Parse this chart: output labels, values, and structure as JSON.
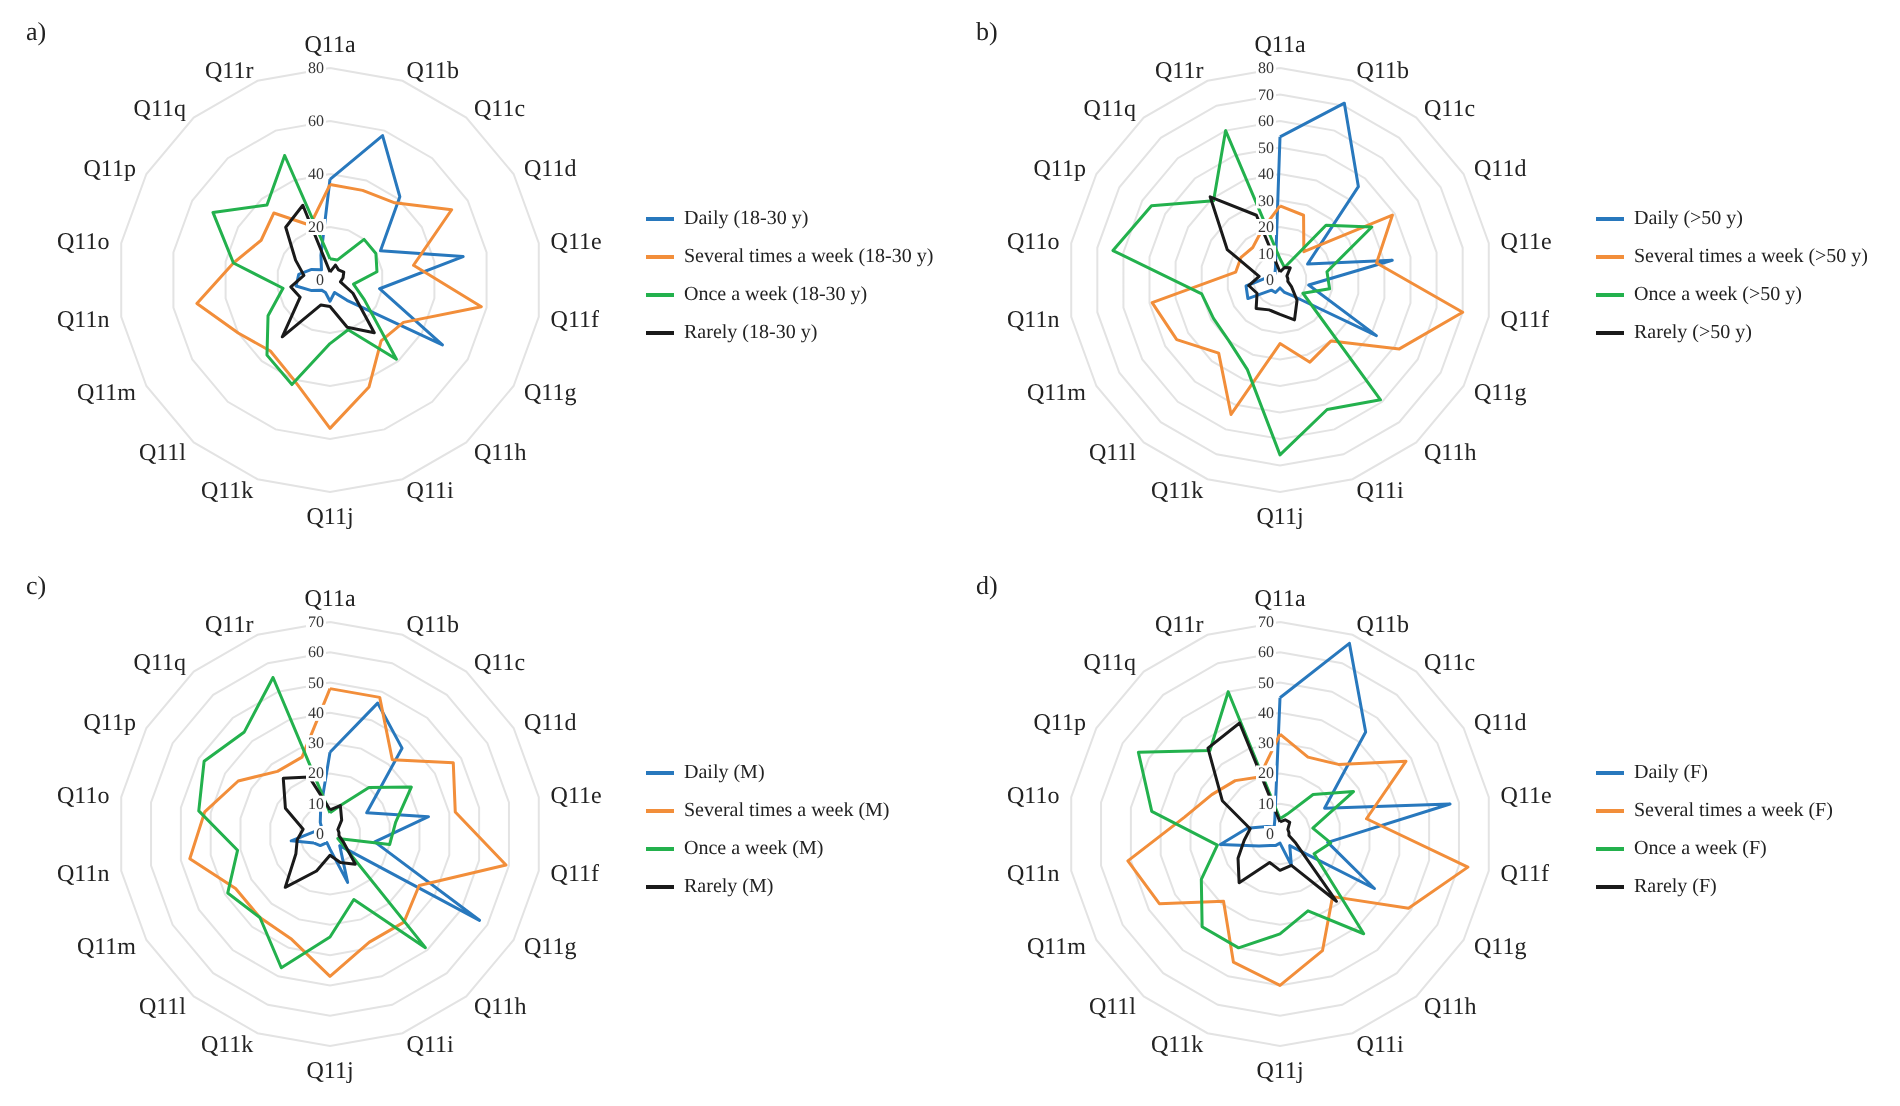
{
  "chart_data": [
    {
      "type": "radar",
      "title": "a)",
      "categories": [
        "Q11a",
        "Q11b",
        "Q11c",
        "Q11d",
        "Q11e",
        "Q11f",
        "Q11g",
        "Q11h",
        "Q11i",
        "Q11j",
        "Q11k",
        "Q11l",
        "Q11m",
        "Q11n",
        "Q11o",
        "Q11p",
        "Q11q",
        "Q11r"
      ],
      "ylim": [
        0,
        80
      ],
      "yticks": [
        0,
        20,
        40,
        60,
        80
      ],
      "grid": true,
      "legend": "right",
      "marker": "none",
      "series": [
        {
          "name": "Daily (18-30 y)",
          "color": "#2878bd",
          "values": [
            38,
            58,
            41,
            22,
            51,
            19,
            49,
            10,
            5,
            8,
            5,
            5,
            8,
            13,
            12,
            8,
            5,
            10
          ]
        },
        {
          "name": "Several times a week (18-30 y)",
          "color": "#f28e3a",
          "values": [
            36,
            36,
            38,
            53,
            32,
            58,
            32,
            30,
            43,
            56,
            40,
            35,
            40,
            51,
            37,
            30,
            33,
            22
          ]
        },
        {
          "name": "Once a week (18-30 y)",
          "color": "#23b14d",
          "values": [
            8,
            8,
            20,
            20,
            18,
            9,
            15,
            39,
            20,
            24,
            42,
            37,
            27,
            18,
            37,
            51,
            37,
            50
          ]
        },
        {
          "name": "Rarely (18-30 y)",
          "color": "#1a1a1a",
          "values": [
            3,
            6,
            5,
            6,
            5,
            4,
            10,
            26,
            19,
            10,
            10,
            28,
            13,
            15,
            10,
            15,
            26,
            30
          ]
        }
      ]
    },
    {
      "type": "radar",
      "title": "b)",
      "categories": [
        "Q11a",
        "Q11b",
        "Q11c",
        "Q11d",
        "Q11e",
        "Q11f",
        "Q11g",
        "Q11h",
        "Q11i",
        "Q11j",
        "Q11k",
        "Q11l",
        "Q11m",
        "Q11n",
        "Q11o",
        "Q11p",
        "Q11q",
        "Q11r"
      ],
      "ylim": [
        0,
        80
      ],
      "yticks": [
        0,
        10,
        20,
        30,
        40,
        50,
        60,
        70,
        80
      ],
      "grid": true,
      "legend": "right",
      "marker": "none",
      "series": [
        {
          "name": "Daily (>50 y)",
          "color": "#2878bd",
          "values": [
            54,
            71,
            46,
            12,
            43,
            11,
            42,
            8,
            5,
            3,
            5,
            5,
            14,
            13,
            5,
            3,
            3,
            5
          ]
        },
        {
          "name": "Several times a week (>50 y)",
          "color": "#f28e3a",
          "values": [
            28,
            26,
            14,
            49,
            37,
            70,
            52,
            30,
            33,
            24,
            54,
            36,
            45,
            49,
            17,
            17,
            16,
            20
          ]
        },
        {
          "name": "Once a week (>50 y)",
          "color": "#23b14d",
          "values": [
            8,
            5,
            27,
            40,
            18,
            19,
            10,
            59,
            52,
            66,
            36,
            30,
            29,
            30,
            64,
            56,
            39,
            60
          ]
        },
        {
          "name": "Rarely (>50 y)",
          "color": "#1a1a1a",
          "values": [
            3,
            5,
            6,
            3,
            3,
            3,
            5,
            10,
            16,
            13,
            12,
            14,
            10,
            12,
            8,
            23,
            41,
            26
          ]
        }
      ]
    },
    {
      "type": "radar",
      "title": "c)",
      "categories": [
        "Q11a",
        "Q11b",
        "Q11c",
        "Q11d",
        "Q11e",
        "Q11f",
        "Q11g",
        "Q11h",
        "Q11i",
        "Q11j",
        "Q11k",
        "Q11l",
        "Q11m",
        "Q11n",
        "Q11o",
        "Q11p",
        "Q11q",
        "Q11r"
      ],
      "ylim": [
        0,
        70
      ],
      "yticks": [
        0,
        10,
        20,
        30,
        40,
        50,
        60,
        70
      ],
      "grid": true,
      "legend": "right",
      "marker": "none",
      "series": [
        {
          "name": "Daily (M)",
          "color": "#2878bd",
          "values": [
            27,
            46,
            37,
            14,
            33,
            15,
            57,
            5,
            17,
            5,
            3,
            5,
            6,
            13,
            5,
            3,
            5,
            9
          ]
        },
        {
          "name": "Several times a week (M)",
          "color": "#f28e3a",
          "values": [
            48,
            48,
            32,
            47,
            42,
            59,
            34,
            38,
            38,
            47,
            37,
            36,
            36,
            47,
            42,
            35,
            27,
            27
          ]
        },
        {
          "name": "Once a week (M)",
          "color": "#23b14d",
          "values": [
            7,
            10,
            20,
            31,
            22,
            20,
            3,
            49,
            23,
            34,
            47,
            36,
            39,
            31,
            44,
            48,
            44,
            55
          ]
        },
        {
          "name": "Rarely (M)",
          "color": "#1a1a1a",
          "values": [
            8,
            10,
            6,
            3,
            3,
            3,
            5,
            13,
            10,
            7,
            13,
            23,
            13,
            11,
            9,
            17,
            24,
            20
          ]
        }
      ]
    },
    {
      "type": "radar",
      "title": "d)",
      "categories": [
        "Q11a",
        "Q11b",
        "Q11c",
        "Q11d",
        "Q11e",
        "Q11f",
        "Q11g",
        "Q11h",
        "Q11i",
        "Q11j",
        "Q11k",
        "Q11l",
        "Q11m",
        "Q11n",
        "Q11o",
        "Q11p",
        "Q11q",
        "Q11r"
      ],
      "ylim": [
        0,
        70
      ],
      "yticks": [
        0,
        10,
        20,
        30,
        40,
        50,
        60,
        70
      ],
      "grid": true,
      "legend": "right",
      "marker": "none",
      "series": [
        {
          "name": "Daily (F)",
          "color": "#2878bd",
          "values": [
            45,
            67,
            44,
            17,
            57,
            16,
            36,
            5,
            11,
            3,
            4,
            5,
            8,
            20,
            11,
            5,
            3,
            5
          ]
        },
        {
          "name": "Several times a week (F)",
          "color": "#f28e3a",
          "values": [
            33,
            27,
            30,
            48,
            29,
            63,
            49,
            27,
            41,
            50,
            45,
            29,
            46,
            51,
            32,
            26,
            23,
            20
          ]
        },
        {
          "name": "Once a week (F)",
          "color": "#23b14d",
          "values": [
            5,
            7,
            17,
            28,
            11,
            17,
            13,
            43,
            27,
            33,
            40,
            40,
            30,
            21,
            43,
            54,
            36,
            50
          ]
        },
        {
          "name": "Rarely (F)",
          "color": "#1a1a1a",
          "values": [
            4,
            5,
            5,
            3,
            3,
            3,
            6,
            29,
            11,
            12,
            10,
            21,
            16,
            12,
            10,
            22,
            37,
            39
          ]
        }
      ]
    }
  ]
}
